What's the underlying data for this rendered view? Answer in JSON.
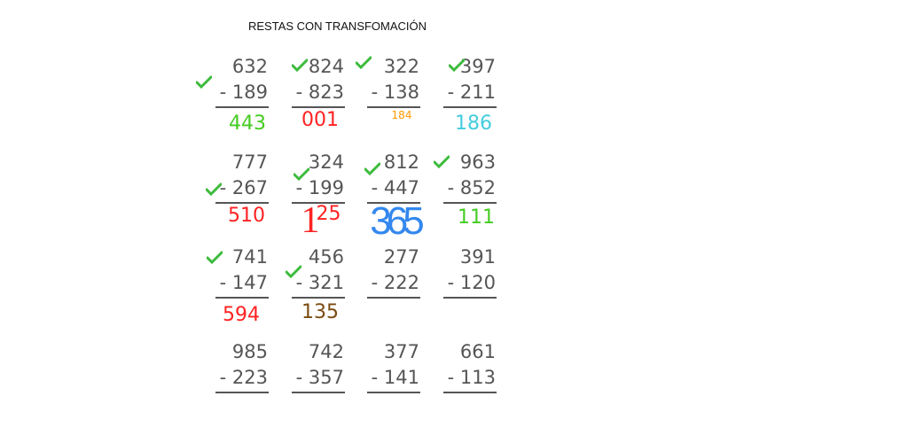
{
  "title": "RESTAS CON TRANSFOMACIÓN",
  "colors": {
    "digits": "#555555",
    "check": "#3dbb3d",
    "green": "#44cc22",
    "red": "#ff2222",
    "orange": "#ff9900",
    "cyan": "#44ccdd",
    "blue": "#3388ee",
    "brown": "#7a4a10"
  },
  "problems": [
    {
      "top": "632",
      "bottom": "- 189",
      "answer": "443",
      "answer_color": "#44cc22",
      "checked": true
    },
    {
      "top": "824",
      "bottom": "- 823",
      "answer": "001",
      "answer_color": "#ff2222",
      "checked": true
    },
    {
      "top": "322",
      "bottom": "- 138",
      "answer": "184",
      "answer_color": "#ff9900",
      "checked": true
    },
    {
      "top": "397",
      "bottom": "- 211",
      "answer": "186",
      "answer_color": "#44ccdd",
      "checked": true
    },
    {
      "top": "777",
      "bottom": "- 267",
      "answer": "510",
      "answer_color": "#ff2222",
      "checked": true
    },
    {
      "top": "324",
      "bottom": "- 199",
      "answer_big": "1",
      "answer": "25",
      "answer_color": "#ff2222",
      "checked": true
    },
    {
      "top": "812",
      "bottom": "- 447",
      "answer": "365",
      "answer_color": "#3388ee",
      "checked": true
    },
    {
      "top": "963",
      "bottom": "- 852",
      "answer": "111",
      "answer_color": "#44cc22",
      "checked": true
    },
    {
      "top": "741",
      "bottom": "- 147",
      "answer": "594",
      "answer_color": "#ff2222",
      "checked": true
    },
    {
      "top": "456",
      "bottom": "- 321",
      "answer": "135",
      "answer_color": "#7a4a10",
      "checked": true
    },
    {
      "top": "277",
      "bottom": "- 222",
      "answer": "",
      "checked": false
    },
    {
      "top": "391",
      "bottom": "- 120",
      "answer": "",
      "checked": false
    },
    {
      "top": "985",
      "bottom": "- 223",
      "answer": "",
      "checked": false
    },
    {
      "top": "742",
      "bottom": "- 357",
      "answer": "",
      "checked": false
    },
    {
      "top": "377",
      "bottom": "- 141",
      "answer": "",
      "checked": false
    },
    {
      "top": "661",
      "bottom": "- 113",
      "answer": "",
      "checked": false
    }
  ]
}
